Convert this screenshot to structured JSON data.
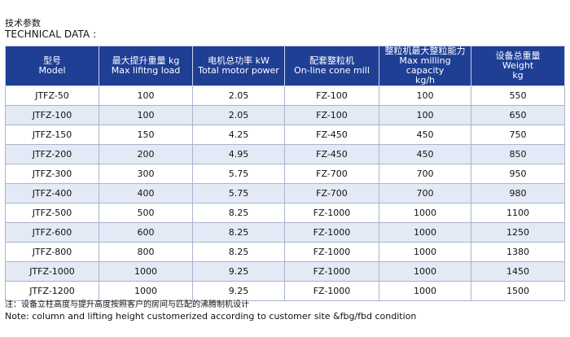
{
  "header": {
    "title_cn": "技术参数",
    "title_en": "TECHNICAL DATA :"
  },
  "table": {
    "columns": [
      {
        "cn": "型号",
        "en": "Model",
        "extra": ""
      },
      {
        "cn": "最大提升重量 kg",
        "en": "Max lifitng load",
        "extra": ""
      },
      {
        "cn": "电机总功率 kW",
        "en": "Total motor power",
        "extra": ""
      },
      {
        "cn": "配套整粒机",
        "en": "On-line cone mill",
        "extra": ""
      },
      {
        "cn": "整粒机最大整粒能力",
        "en": "Max milling capacity",
        "extra": "kg/h"
      },
      {
        "cn": "设备总重量",
        "en": "Weight",
        "extra": "kg"
      }
    ],
    "rows": [
      [
        "JTFZ-50",
        "100",
        "2.05",
        "FZ-100",
        "100",
        "550"
      ],
      [
        "JTFZ-100",
        "100",
        "2.05",
        "FZ-100",
        "100",
        "650"
      ],
      [
        "JTFZ-150",
        "150",
        "4.25",
        "FZ-450",
        "450",
        "750"
      ],
      [
        "JTFZ-200",
        "200",
        "4.95",
        "FZ-450",
        "450",
        "850"
      ],
      [
        "JTFZ-300",
        "300",
        "5.75",
        "FZ-700",
        "700",
        "950"
      ],
      [
        "JTFZ-400",
        "400",
        "5.75",
        "FZ-700",
        "700",
        "980"
      ],
      [
        "JTFZ-500",
        "500",
        "8.25",
        "FZ-1000",
        "1000",
        "1100"
      ],
      [
        "JTFZ-600",
        "600",
        "8.25",
        "FZ-1000",
        "1000",
        "1250"
      ],
      [
        "JTFZ-800",
        "800",
        "8.25",
        "FZ-1000",
        "1000",
        "1380"
      ],
      [
        "JTFZ-1000",
        "1000",
        "9.25",
        "FZ-1000",
        "1000",
        "1450"
      ],
      [
        "JTFZ-1200",
        "1000",
        "9.25",
        "FZ-1000",
        "1000",
        "1500"
      ]
    ]
  },
  "notes": {
    "cn": "注：设备立柱高度与提升高度按照客户的房间与匹配的沸腾制机设计",
    "en": "Note: column and lifting height customerized according to customer site &fbg/fbd condition"
  },
  "colors": {
    "header_bg": "#1f3f95",
    "row_alt_bg": "#e3eaf5",
    "border": "#a9b4cc"
  }
}
